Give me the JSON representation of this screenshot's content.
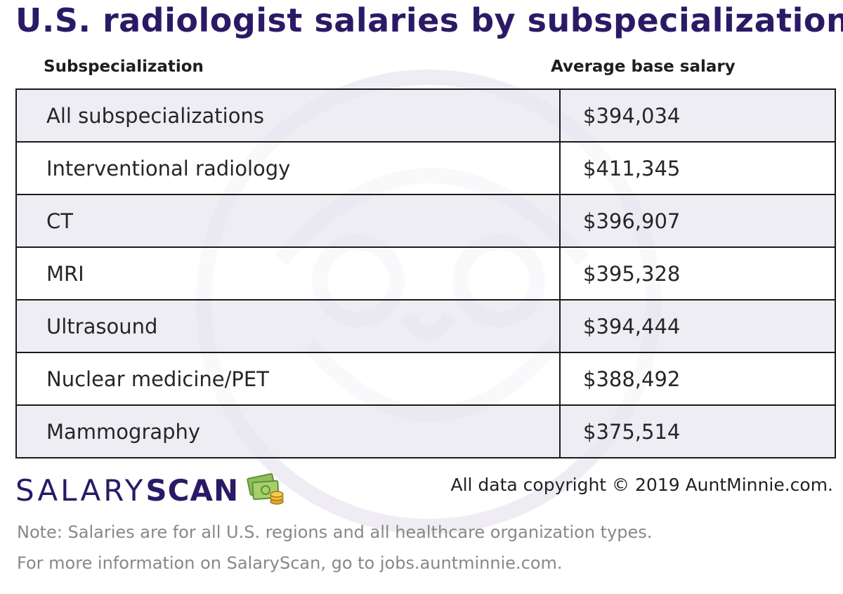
{
  "title": "U.S. radiologist salaries by subspecialization",
  "chart_data": {
    "type": "table",
    "columns": [
      "Subspecialization",
      "Average base salary"
    ],
    "rows": [
      {
        "name": "All subspecializations",
        "salary": "$394,034",
        "value": 394034
      },
      {
        "name": "Interventional radiology",
        "salary": "$411,345",
        "value": 411345
      },
      {
        "name": "CT",
        "salary": "$396,907",
        "value": 396907
      },
      {
        "name": "MRI",
        "salary": "$395,328",
        "value": 395328
      },
      {
        "name": "Ultrasound",
        "salary": "$394,444",
        "value": 394444
      },
      {
        "name": "Nuclear medicine/PET",
        "salary": "$388,492",
        "value": 388492
      },
      {
        "name": "Mammography",
        "salary": "$375,514",
        "value": 375514
      }
    ]
  },
  "logo": {
    "part1": "SALARY",
    "part2": "SCAN",
    "icon": "money-icon"
  },
  "copyright": "All data copyright © 2019 AuntMinnie.com.",
  "notes": [
    "Note: Salaries are for all U.S. regions and all healthcare organization types.",
    "For more information on SalaryScan, go to jobs.auntminnie.com."
  ],
  "colors": {
    "title": "#2a1a66",
    "row_shade": "#e8e6ee",
    "note_text": "#888888"
  }
}
